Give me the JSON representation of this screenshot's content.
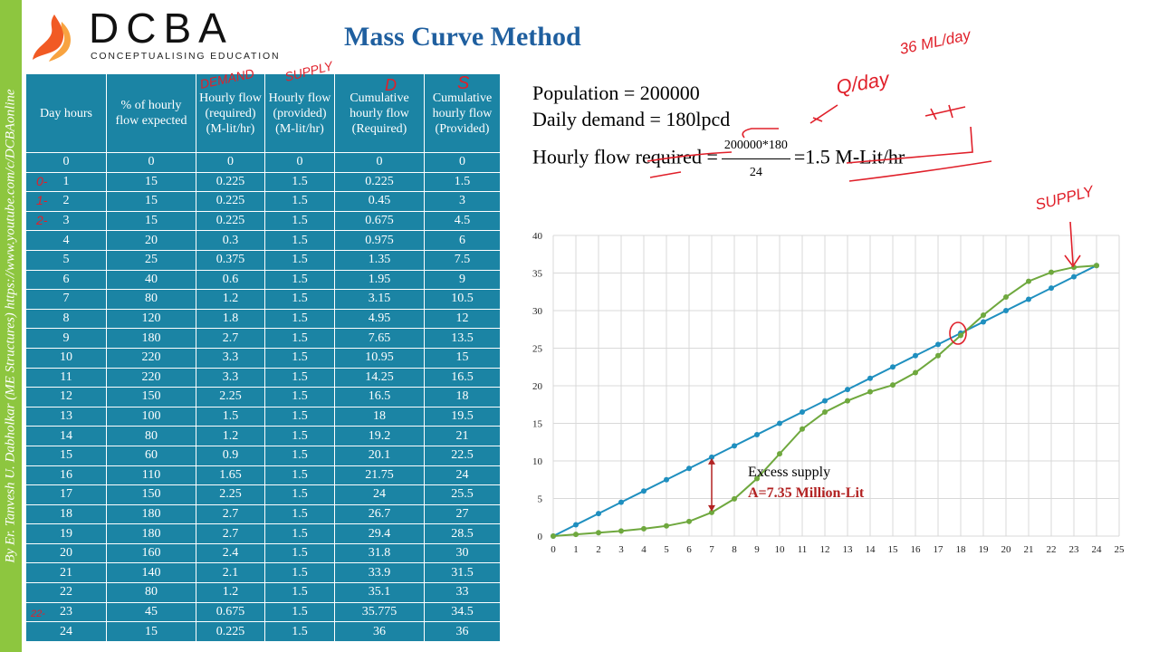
{
  "sidebar": {
    "text": "By Er. Tanvesh U. Dabholkar (ME Structures)   https://www.youtube.com/c/DCBAonline"
  },
  "logo": {
    "wordmark": "DCBA",
    "tagline": "CONCEPTUALISING EDUCATION"
  },
  "title": "Mass Curve Method",
  "given": {
    "population": "Population = 200000",
    "daily_demand": "Daily demand = 180lpcd",
    "hourly_prefix": "Hourly flow required =",
    "numerator": "200000*180",
    "denominator": "24",
    "hourly_result": "=1.5 M-Lit/hr"
  },
  "table": {
    "headers": [
      "Day hours",
      "% of hourly flow expected",
      "Hourly flow (required) (M-lit/hr)",
      "Hourly flow (provided) (M-lit/hr)",
      "Cumulative hourly flow (Required)",
      "Cumulative hourly flow (Provided)"
    ],
    "rows": [
      [
        "0",
        "0",
        "0",
        "0",
        "0",
        "0"
      ],
      [
        "1",
        "15",
        "0.225",
        "1.5",
        "0.225",
        "1.5"
      ],
      [
        "2",
        "15",
        "0.225",
        "1.5",
        "0.45",
        "3"
      ],
      [
        "3",
        "15",
        "0.225",
        "1.5",
        "0.675",
        "4.5"
      ],
      [
        "4",
        "20",
        "0.3",
        "1.5",
        "0.975",
        "6"
      ],
      [
        "5",
        "25",
        "0.375",
        "1.5",
        "1.35",
        "7.5"
      ],
      [
        "6",
        "40",
        "0.6",
        "1.5",
        "1.95",
        "9"
      ],
      [
        "7",
        "80",
        "1.2",
        "1.5",
        "3.15",
        "10.5"
      ],
      [
        "8",
        "120",
        "1.8",
        "1.5",
        "4.95",
        "12"
      ],
      [
        "9",
        "180",
        "2.7",
        "1.5",
        "7.65",
        "13.5"
      ],
      [
        "10",
        "220",
        "3.3",
        "1.5",
        "10.95",
        "15"
      ],
      [
        "11",
        "220",
        "3.3",
        "1.5",
        "14.25",
        "16.5"
      ],
      [
        "12",
        "150",
        "2.25",
        "1.5",
        "16.5",
        "18"
      ],
      [
        "13",
        "100",
        "1.5",
        "1.5",
        "18",
        "19.5"
      ],
      [
        "14",
        "80",
        "1.2",
        "1.5",
        "19.2",
        "21"
      ],
      [
        "15",
        "60",
        "0.9",
        "1.5",
        "20.1",
        "22.5"
      ],
      [
        "16",
        "110",
        "1.65",
        "1.5",
        "21.75",
        "24"
      ],
      [
        "17",
        "150",
        "2.25",
        "1.5",
        "24",
        "25.5"
      ],
      [
        "18",
        "180",
        "2.7",
        "1.5",
        "26.7",
        "27"
      ],
      [
        "19",
        "180",
        "2.7",
        "1.5",
        "29.4",
        "28.5"
      ],
      [
        "20",
        "160",
        "2.4",
        "1.5",
        "31.8",
        "30"
      ],
      [
        "21",
        "140",
        "2.1",
        "1.5",
        "33.9",
        "31.5"
      ],
      [
        "22",
        "80",
        "1.2",
        "1.5",
        "35.1",
        "33"
      ],
      [
        "23",
        "45",
        "0.675",
        "1.5",
        "35.775",
        "34.5"
      ],
      [
        "24",
        "15",
        "0.225",
        "1.5",
        "36",
        "36"
      ]
    ]
  },
  "chart_data": {
    "type": "line",
    "x": [
      0,
      1,
      2,
      3,
      4,
      5,
      6,
      7,
      8,
      9,
      10,
      11,
      12,
      13,
      14,
      15,
      16,
      17,
      18,
      19,
      20,
      21,
      22,
      23,
      24
    ],
    "series": [
      {
        "values": [
          0,
          1.5,
          3,
          4.5,
          6,
          7.5,
          9,
          10.5,
          12,
          13.5,
          15,
          16.5,
          18,
          19.5,
          21,
          22.5,
          24,
          25.5,
          27,
          28.5,
          30,
          31.5,
          33,
          34.5,
          36
        ],
        "color": "#1f8fbf"
      },
      {
        "values": [
          0,
          0.225,
          0.45,
          0.675,
          0.975,
          1.35,
          1.95,
          3.15,
          4.95,
          7.65,
          10.95,
          14.25,
          16.5,
          18,
          19.2,
          20.1,
          21.75,
          24,
          26.7,
          29.4,
          31.8,
          33.9,
          35.1,
          35.775,
          36
        ],
        "color": "#6fa83e"
      }
    ],
    "xlim": [
      0,
      25
    ],
    "ylim": [
      0,
      40
    ],
    "x_ticks": [
      0,
      1,
      2,
      3,
      4,
      5,
      6,
      7,
      8,
      9,
      10,
      11,
      12,
      13,
      14,
      15,
      16,
      17,
      18,
      19,
      20,
      21,
      22,
      23,
      24,
      25
    ],
    "y_ticks": [
      0,
      5,
      10,
      15,
      20,
      25,
      30,
      35,
      40
    ],
    "grid": true,
    "annotation_text": "Excess supply",
    "annotation_value": "A=7.35 Million-Lit",
    "annotation_color": "#b22222"
  },
  "handwritten": {
    "demand": "DEMAND",
    "supply": "SUPPLY",
    "q_day": "Q/day",
    "ml_day": "36 ML/day",
    "supply2": "SUPPLY",
    "d": "D",
    "s": "S",
    "row0": "0-",
    "row1": "1-",
    "row2": "2-",
    "row22": "22-",
    "ink_color": "#e0202a"
  }
}
